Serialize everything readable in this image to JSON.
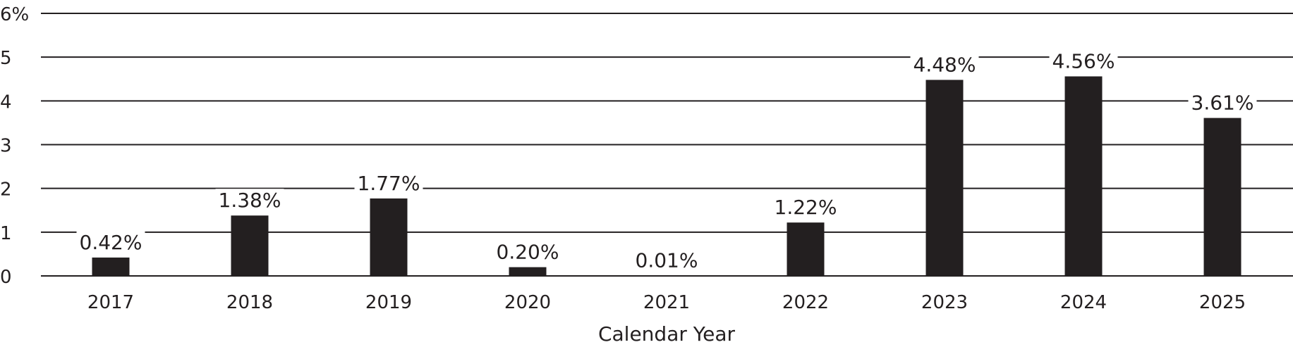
{
  "chart_data": {
    "type": "bar",
    "title": "",
    "xlabel": "Calendar Year",
    "ylabel": "",
    "ylim": [
      0,
      6
    ],
    "y_ticks": [
      0,
      1,
      2,
      3,
      4,
      5,
      6
    ],
    "y_tick_labels": [
      "0",
      "1",
      "2",
      "3",
      "4",
      "5",
      "6%"
    ],
    "grid": true,
    "categories": [
      "2017",
      "2018",
      "2019",
      "2020",
      "2021",
      "2022",
      "2023",
      "2024",
      "2025"
    ],
    "values": [
      0.42,
      1.38,
      1.77,
      0.2,
      0.01,
      1.22,
      4.48,
      4.56,
      3.61
    ],
    "value_labels": [
      "0.42%",
      "1.38%",
      "1.77%",
      "0.20%",
      "0.01%",
      "1.22%",
      "4.48%",
      "4.56%",
      "3.61%"
    ],
    "colors": {
      "bar": "#231f20",
      "grid": "#231f20",
      "text": "#231f20",
      "background": "#ffffff"
    }
  }
}
